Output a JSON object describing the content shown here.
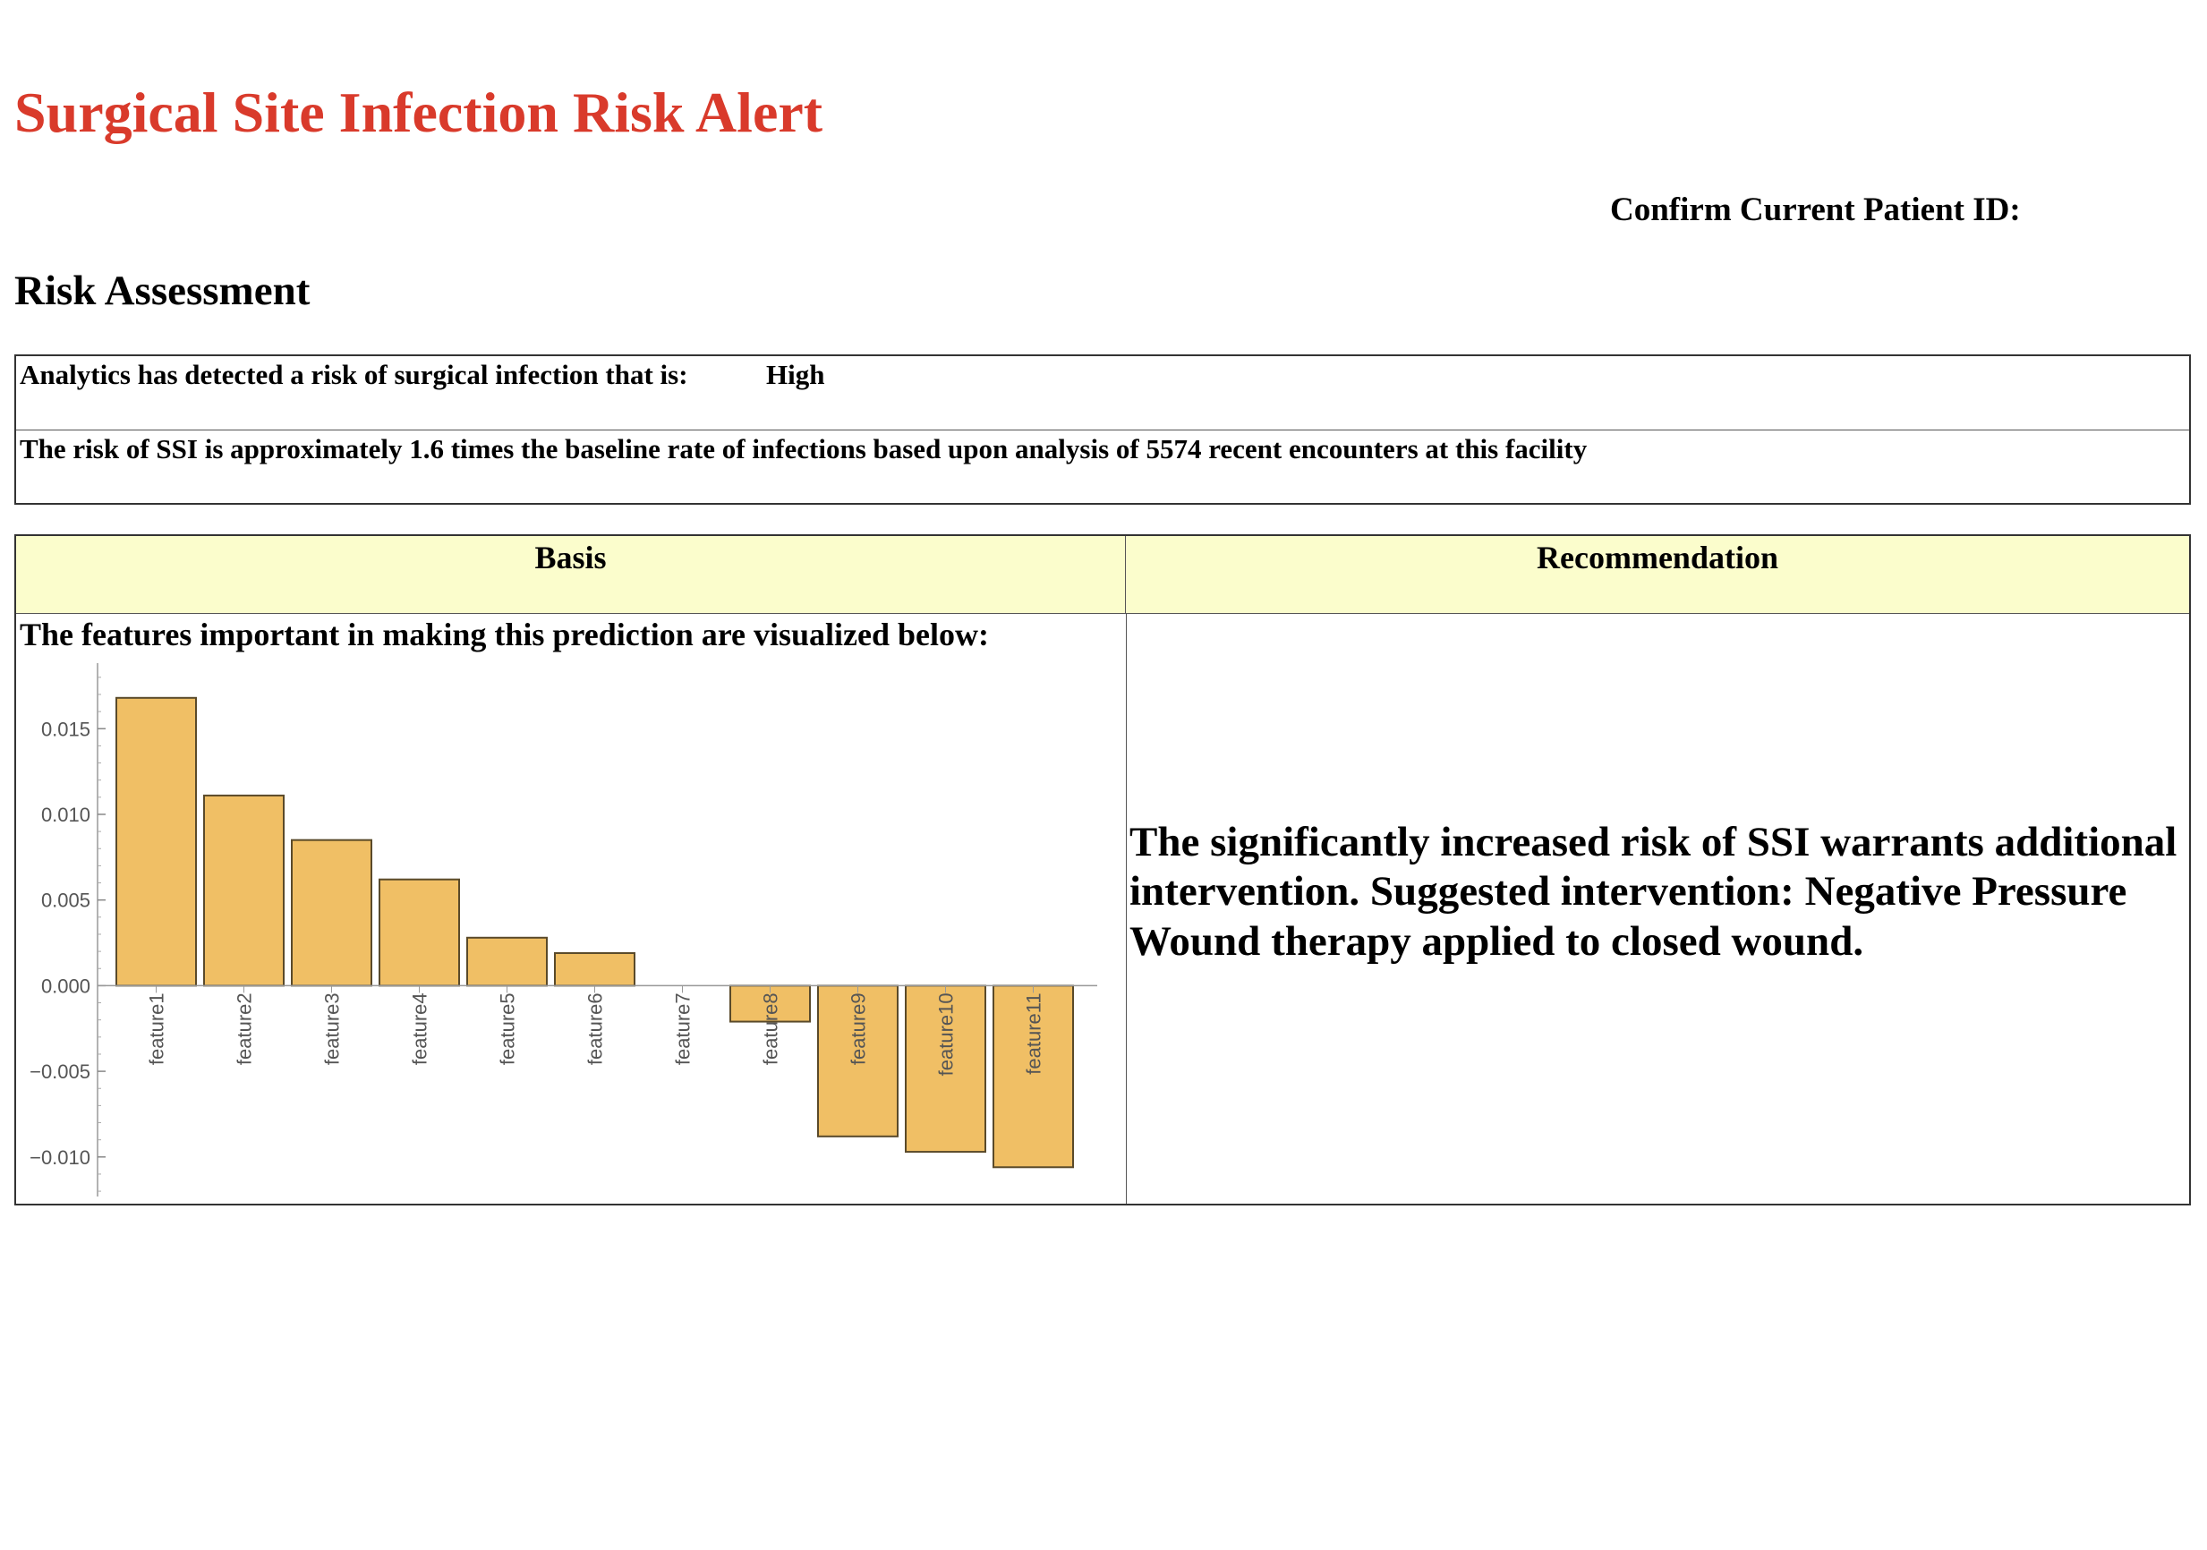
{
  "page": {
    "title": "Surgical Site Infection Risk Alert",
    "patient_id_label": "Confirm Current Patient ID:",
    "section_title": "Risk Assessment"
  },
  "risk": {
    "detected_label": "Analytics has detected a risk of surgical infection that is:",
    "level": "High",
    "summary": "The risk of SSI is approximately 1.6 times the baseline rate of infections based upon analysis of 5574 recent encounters at this facility"
  },
  "basis_table": {
    "basis_header": "Basis",
    "recommendation_header": "Recommendation",
    "basis_intro": "The features important in making this prediction are visualized below:",
    "recommendation_text": "The significantly increased risk of SSI warrants additional intervention. Suggested intervention: Negative Pressure Wound therapy applied to closed wound."
  },
  "colors": {
    "title": "#d93a2b",
    "header_bg": "#fbfdcc",
    "bar_fill": "#f0bf65",
    "bar_stroke": "#5a4a2a"
  },
  "chart_data": {
    "type": "bar",
    "categories": [
      "feature1",
      "feature2",
      "feature3",
      "feature4",
      "feature5",
      "feature6",
      "feature7",
      "feature8",
      "feature9",
      "feature10",
      "feature11"
    ],
    "values": [
      0.0168,
      0.0111,
      0.0085,
      0.0062,
      0.0028,
      0.0019,
      0.0,
      -0.0021,
      -0.0088,
      -0.0097,
      -0.0106
    ],
    "ylim": [
      -0.0121,
      0.0182
    ],
    "yticks": [
      0.015,
      0.01,
      0.005,
      0.0,
      -0.005,
      -0.01
    ],
    "ytick_labels": [
      "0.015",
      "0.010",
      "0.005",
      "0.000",
      "−0.005",
      "−0.010"
    ],
    "title": "",
    "xlabel": "",
    "ylabel": "",
    "grid": false,
    "legend": false
  }
}
